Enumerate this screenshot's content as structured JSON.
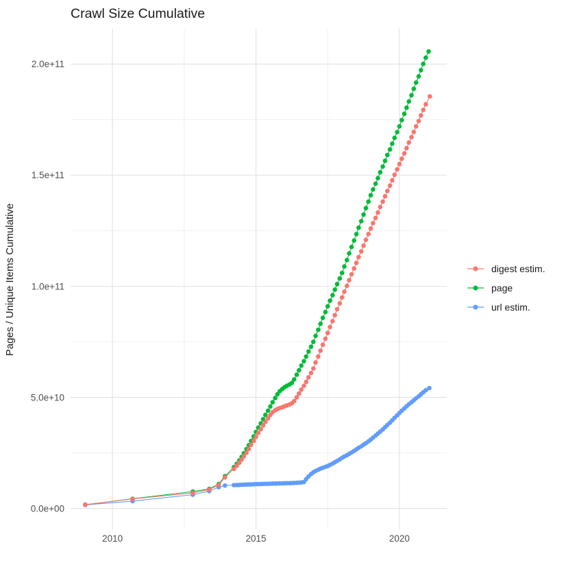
{
  "title": "Crawl Size Cumulative",
  "axes": {
    "y_title": "Pages / Unique Items Cumulative",
    "x_title": "",
    "x_ticks": [
      {
        "value": 2010,
        "label": "2010"
      },
      {
        "value": 2015,
        "label": "2015"
      },
      {
        "value": 2020,
        "label": "2020"
      }
    ],
    "x_minor": [
      2012.5,
      2017.5
    ],
    "y_ticks": [
      {
        "value": 0,
        "label": "0.0e+00"
      },
      {
        "value": 50,
        "label": "5.0e+10"
      },
      {
        "value": 100,
        "label": "1.0e+11"
      },
      {
        "value": 150,
        "label": "1.5e+11"
      },
      {
        "value": 200,
        "label": "2.0e+11"
      }
    ],
    "y_minor": [
      25,
      75,
      125,
      175
    ],
    "xlim": [
      2008.54,
      2021.65
    ],
    "ylim_billions": [
      -10.3,
      215.9
    ],
    "grid": "on",
    "legend_position": "right"
  },
  "colors": {
    "digest_estim": "#F8766D",
    "page": "#00BA38",
    "url_estim": "#619CFF",
    "grid_major": "#E3E3E3",
    "grid_minor": "#EFEFEF",
    "tick_text": "#4d4d4d"
  },
  "chart_data": {
    "type": "line",
    "marker": "point",
    "y_unit": "billions (1e9) of pages / unique items",
    "title": "Crawl Size Cumulative",
    "xlabel": "",
    "ylabel": "Pages / Unique Items Cumulative",
    "series": [
      {
        "name": "digest estim.",
        "color": "#F8766D",
        "points": [
          [
            2009.05,
            1.7
          ],
          [
            2010.7,
            4.3
          ],
          [
            2012.8,
            7.0
          ],
          [
            2013.37,
            8.5
          ],
          [
            2013.7,
            10.6
          ],
          [
            2013.92,
            14.0
          ],
          [
            2014.23,
            17.8
          ],
          [
            2014.33,
            19.2
          ],
          [
            2014.42,
            20.6
          ],
          [
            2014.5,
            22.0
          ],
          [
            2014.58,
            23.5
          ],
          [
            2014.67,
            25.1
          ],
          [
            2014.75,
            26.8
          ],
          [
            2014.83,
            28.6
          ],
          [
            2014.92,
            30.4
          ],
          [
            2015.0,
            32.2
          ],
          [
            2015.08,
            34.0
          ],
          [
            2015.17,
            35.7
          ],
          [
            2015.25,
            37.4
          ],
          [
            2015.33,
            39.0
          ],
          [
            2015.42,
            40.6
          ],
          [
            2015.5,
            42.1
          ],
          [
            2015.58,
            43.3
          ],
          [
            2015.67,
            44.2
          ],
          [
            2015.75,
            44.8
          ],
          [
            2015.83,
            45.2
          ],
          [
            2015.92,
            45.6
          ],
          [
            2016.0,
            46.0
          ],
          [
            2016.08,
            46.4
          ],
          [
            2016.17,
            46.8
          ],
          [
            2016.25,
            47.3
          ],
          [
            2016.33,
            48.3
          ],
          [
            2016.42,
            50.0
          ],
          [
            2016.5,
            51.7
          ],
          [
            2016.58,
            53.5
          ],
          [
            2016.67,
            55.2
          ],
          [
            2016.75,
            57.0
          ],
          [
            2016.83,
            59.0
          ],
          [
            2016.92,
            61.0
          ],
          [
            2017.0,
            63.0
          ],
          [
            2017.08,
            65.7
          ],
          [
            2017.17,
            68.4
          ],
          [
            2017.25,
            71.0
          ],
          [
            2017.33,
            73.7
          ],
          [
            2017.42,
            76.4
          ],
          [
            2017.5,
            79.0
          ],
          [
            2017.58,
            81.7
          ],
          [
            2017.67,
            84.3
          ],
          [
            2017.75,
            87.0
          ],
          [
            2017.83,
            89.7
          ],
          [
            2017.92,
            92.3
          ],
          [
            2018.0,
            95.0
          ],
          [
            2018.08,
            97.6
          ],
          [
            2018.17,
            100.2
          ],
          [
            2018.25,
            102.8
          ],
          [
            2018.33,
            105.4
          ],
          [
            2018.42,
            108.0
          ],
          [
            2018.5,
            110.5
          ],
          [
            2018.58,
            113.1
          ],
          [
            2018.67,
            115.7
          ],
          [
            2018.75,
            118.3
          ],
          [
            2018.83,
            120.9
          ],
          [
            2018.92,
            123.5
          ],
          [
            2019.0,
            126.0
          ],
          [
            2019.08,
            128.4
          ],
          [
            2019.17,
            130.8
          ],
          [
            2019.25,
            133.2
          ],
          [
            2019.33,
            135.7
          ],
          [
            2019.42,
            138.1
          ],
          [
            2019.5,
            140.5
          ],
          [
            2019.58,
            142.9
          ],
          [
            2019.67,
            145.3
          ],
          [
            2019.75,
            147.7
          ],
          [
            2019.83,
            150.2
          ],
          [
            2019.92,
            152.6
          ],
          [
            2020.0,
            155.0
          ],
          [
            2020.08,
            157.4
          ],
          [
            2020.17,
            159.8
          ],
          [
            2020.25,
            162.2
          ],
          [
            2020.33,
            164.7
          ],
          [
            2020.42,
            167.1
          ],
          [
            2020.5,
            169.5
          ],
          [
            2020.58,
            172.0
          ],
          [
            2020.67,
            174.4
          ],
          [
            2020.75,
            176.9
          ],
          [
            2020.83,
            179.4
          ],
          [
            2020.92,
            181.9
          ],
          [
            2021.06,
            185.5
          ]
        ]
      },
      {
        "name": "page",
        "color": "#00BA38",
        "points": [
          [
            2009.05,
            1.7
          ],
          [
            2010.7,
            4.4
          ],
          [
            2012.8,
            7.6
          ],
          [
            2013.37,
            8.8
          ],
          [
            2013.7,
            11.0
          ],
          [
            2013.92,
            14.5
          ],
          [
            2014.23,
            18.6
          ],
          [
            2014.33,
            20.1
          ],
          [
            2014.42,
            21.6
          ],
          [
            2014.5,
            23.2
          ],
          [
            2014.58,
            24.9
          ],
          [
            2014.67,
            26.7
          ],
          [
            2014.75,
            28.5
          ],
          [
            2014.83,
            30.4
          ],
          [
            2014.92,
            32.4
          ],
          [
            2015.0,
            34.4
          ],
          [
            2015.08,
            36.4
          ],
          [
            2015.17,
            38.3
          ],
          [
            2015.25,
            40.2
          ],
          [
            2015.33,
            42.1
          ],
          [
            2015.42,
            44.0
          ],
          [
            2015.5,
            45.9
          ],
          [
            2015.58,
            47.8
          ],
          [
            2015.67,
            49.7
          ],
          [
            2015.75,
            51.4
          ],
          [
            2015.83,
            52.8
          ],
          [
            2015.92,
            53.8
          ],
          [
            2016.0,
            54.6
          ],
          [
            2016.08,
            55.2
          ],
          [
            2016.17,
            55.8
          ],
          [
            2016.25,
            56.5
          ],
          [
            2016.33,
            58.1
          ],
          [
            2016.42,
            60.2
          ],
          [
            2016.5,
            62.2
          ],
          [
            2016.58,
            64.3
          ],
          [
            2016.67,
            66.3
          ],
          [
            2016.75,
            68.4
          ],
          [
            2016.83,
            70.6
          ],
          [
            2016.92,
            72.8
          ],
          [
            2017.0,
            75.0
          ],
          [
            2017.08,
            77.7
          ],
          [
            2017.17,
            80.4
          ],
          [
            2017.25,
            83.1
          ],
          [
            2017.33,
            85.8
          ],
          [
            2017.42,
            88.4
          ],
          [
            2017.5,
            91.0
          ],
          [
            2017.58,
            93.5
          ],
          [
            2017.67,
            96.0
          ],
          [
            2017.75,
            98.5
          ],
          [
            2017.83,
            101.0
          ],
          [
            2017.92,
            103.5
          ],
          [
            2018.0,
            106.0
          ],
          [
            2018.08,
            108.9
          ],
          [
            2018.17,
            111.8
          ],
          [
            2018.25,
            114.8
          ],
          [
            2018.33,
            117.7
          ],
          [
            2018.42,
            120.6
          ],
          [
            2018.5,
            123.5
          ],
          [
            2018.58,
            126.4
          ],
          [
            2018.67,
            129.3
          ],
          [
            2018.75,
            132.3
          ],
          [
            2018.83,
            135.2
          ],
          [
            2018.92,
            138.1
          ],
          [
            2019.0,
            141.0
          ],
          [
            2019.08,
            143.6
          ],
          [
            2019.17,
            146.2
          ],
          [
            2019.25,
            148.7
          ],
          [
            2019.33,
            151.3
          ],
          [
            2019.42,
            153.9
          ],
          [
            2019.5,
            156.5
          ],
          [
            2019.58,
            159.1
          ],
          [
            2019.67,
            161.6
          ],
          [
            2019.75,
            164.2
          ],
          [
            2019.83,
            166.8
          ],
          [
            2019.92,
            169.4
          ],
          [
            2020.0,
            172.0
          ],
          [
            2020.08,
            174.8
          ],
          [
            2020.17,
            177.6
          ],
          [
            2020.25,
            180.4
          ],
          [
            2020.33,
            183.2
          ],
          [
            2020.42,
            186.0
          ],
          [
            2020.5,
            188.9
          ],
          [
            2020.58,
            191.7
          ],
          [
            2020.67,
            194.5
          ],
          [
            2020.75,
            197.3
          ],
          [
            2020.83,
            200.1
          ],
          [
            2020.92,
            202.9
          ],
          [
            2021.02,
            205.7
          ]
        ]
      },
      {
        "name": "url estim.",
        "color": "#619CFF",
        "points": [
          [
            2009.05,
            1.6
          ],
          [
            2010.7,
            3.3
          ],
          [
            2012.8,
            6.2
          ],
          [
            2013.37,
            7.8
          ],
          [
            2013.7,
            9.6
          ],
          [
            2013.92,
            10.3
          ],
          [
            2014.23,
            10.5
          ],
          [
            2014.33,
            10.55
          ],
          [
            2014.42,
            10.6
          ],
          [
            2014.5,
            10.65
          ],
          [
            2014.58,
            10.7
          ],
          [
            2014.67,
            10.75
          ],
          [
            2014.75,
            10.8
          ],
          [
            2014.83,
            10.85
          ],
          [
            2014.92,
            10.9
          ],
          [
            2015.0,
            10.95
          ],
          [
            2015.08,
            11.0
          ],
          [
            2015.17,
            11.0
          ],
          [
            2015.25,
            11.05
          ],
          [
            2015.33,
            11.1
          ],
          [
            2015.42,
            11.1
          ],
          [
            2015.5,
            11.15
          ],
          [
            2015.58,
            11.2
          ],
          [
            2015.67,
            11.2
          ],
          [
            2015.75,
            11.25
          ],
          [
            2015.83,
            11.3
          ],
          [
            2015.92,
            11.3
          ],
          [
            2016.0,
            11.35
          ],
          [
            2016.08,
            11.4
          ],
          [
            2016.17,
            11.4
          ],
          [
            2016.25,
            11.45
          ],
          [
            2016.33,
            11.5
          ],
          [
            2016.42,
            11.55
          ],
          [
            2016.5,
            11.6
          ],
          [
            2016.58,
            11.7
          ],
          [
            2016.67,
            11.9
          ],
          [
            2016.75,
            13.2
          ],
          [
            2016.83,
            14.4
          ],
          [
            2016.92,
            15.5
          ],
          [
            2017.0,
            16.3
          ],
          [
            2017.08,
            16.9
          ],
          [
            2017.17,
            17.4
          ],
          [
            2017.25,
            17.9
          ],
          [
            2017.33,
            18.3
          ],
          [
            2017.42,
            18.7
          ],
          [
            2017.5,
            19.1
          ],
          [
            2017.58,
            19.6
          ],
          [
            2017.67,
            20.2
          ],
          [
            2017.75,
            20.8
          ],
          [
            2017.83,
            21.4
          ],
          [
            2017.92,
            22.1
          ],
          [
            2018.0,
            22.8
          ],
          [
            2018.08,
            23.4
          ],
          [
            2018.17,
            24.0
          ],
          [
            2018.25,
            24.6
          ],
          [
            2018.33,
            25.2
          ],
          [
            2018.42,
            25.9
          ],
          [
            2018.5,
            26.6
          ],
          [
            2018.58,
            27.3
          ],
          [
            2018.67,
            28.0
          ],
          [
            2018.75,
            28.7
          ],
          [
            2018.83,
            29.4
          ],
          [
            2018.92,
            30.2
          ],
          [
            2019.0,
            31.0
          ],
          [
            2019.08,
            31.9
          ],
          [
            2019.17,
            32.8
          ],
          [
            2019.25,
            33.7
          ],
          [
            2019.33,
            34.6
          ],
          [
            2019.42,
            35.6
          ],
          [
            2019.5,
            36.6
          ],
          [
            2019.58,
            37.6
          ],
          [
            2019.67,
            38.6
          ],
          [
            2019.75,
            39.7
          ],
          [
            2019.83,
            40.8
          ],
          [
            2019.92,
            41.9
          ],
          [
            2020.0,
            43.0
          ],
          [
            2020.08,
            44.0
          ],
          [
            2020.17,
            45.0
          ],
          [
            2020.25,
            46.0
          ],
          [
            2020.33,
            46.9
          ],
          [
            2020.42,
            47.8
          ],
          [
            2020.5,
            48.7
          ],
          [
            2020.58,
            49.6
          ],
          [
            2020.67,
            50.5
          ],
          [
            2020.75,
            51.4
          ],
          [
            2020.83,
            52.3
          ],
          [
            2020.92,
            53.2
          ],
          [
            2021.04,
            54.2
          ]
        ]
      }
    ],
    "legend": [
      "digest estim.",
      "page",
      "url estim."
    ]
  }
}
